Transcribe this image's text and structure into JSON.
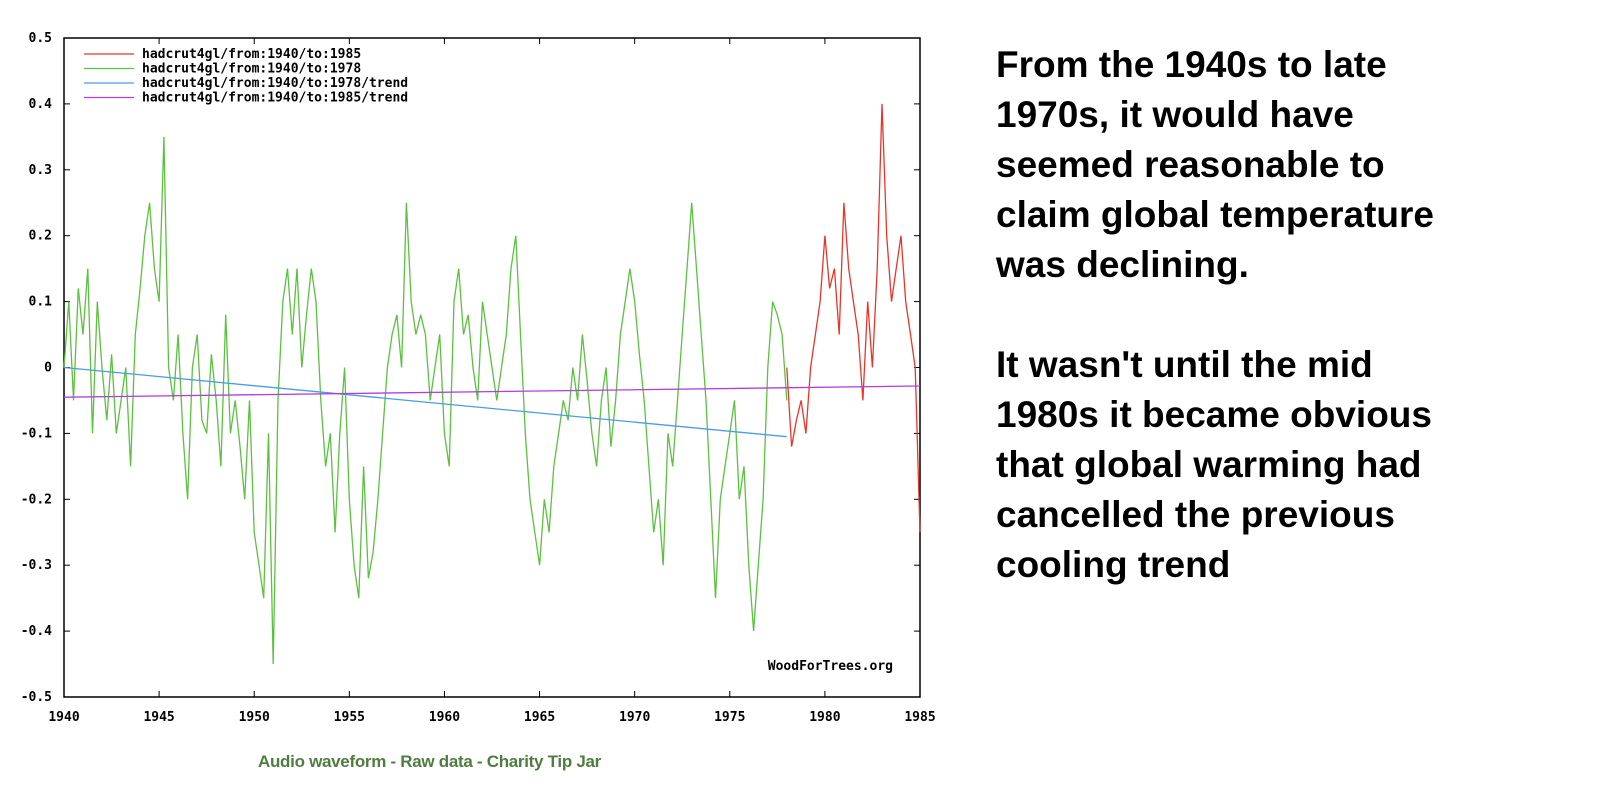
{
  "chart_data": {
    "type": "line",
    "title": "",
    "xlabel": "",
    "ylabel": "",
    "xlim": [
      1940,
      1985
    ],
    "ylim": [
      -0.5,
      0.5
    ],
    "x_ticks": [
      "1940",
      "1945",
      "1950",
      "1955",
      "1960",
      "1965",
      "1970",
      "1975",
      "1980",
      "1985"
    ],
    "y_ticks": [
      "0.5",
      "0.4",
      "0.3",
      "0.2",
      "0.1",
      "0",
      "-0.1",
      "-0.2",
      "-0.3",
      "-0.4",
      "-0.5"
    ],
    "grid": false,
    "legend_position": "top-left",
    "watermark": "WoodForTrees.org",
    "series": [
      {
        "name": "hadcrut4gl/from:1940/to:1985",
        "color": "#e8352b",
        "x_start": 1978.0,
        "x_step": 0.25,
        "values": [
          0.0,
          -0.12,
          -0.08,
          -0.05,
          -0.1,
          0.0,
          0.05,
          0.1,
          0.2,
          0.12,
          0.15,
          0.05,
          0.25,
          0.15,
          0.1,
          0.05,
          -0.05,
          0.1,
          0.0,
          0.15,
          0.4,
          0.2,
          0.1,
          0.15,
          0.2,
          0.1,
          0.05,
          0.0,
          -0.25
        ]
      },
      {
        "name": "hadcrut4gl/from:1940/to:1978",
        "color": "#5cc040",
        "x_start": 1940.0,
        "x_step": 0.25,
        "values": [
          0.0,
          0.1,
          -0.05,
          0.12,
          0.05,
          0.15,
          -0.1,
          0.1,
          0.0,
          -0.08,
          0.02,
          -0.1,
          -0.05,
          0.0,
          -0.15,
          0.05,
          0.12,
          0.2,
          0.25,
          0.15,
          0.1,
          0.35,
          0.0,
          -0.05,
          0.05,
          -0.1,
          -0.2,
          0.0,
          0.05,
          -0.08,
          -0.1,
          0.02,
          -0.05,
          -0.15,
          0.08,
          -0.1,
          -0.05,
          -0.12,
          -0.2,
          -0.05,
          -0.25,
          -0.3,
          -0.35,
          -0.1,
          -0.45,
          -0.05,
          0.1,
          0.15,
          0.05,
          0.15,
          0.0,
          0.08,
          0.15,
          0.1,
          -0.05,
          -0.15,
          -0.1,
          -0.25,
          -0.1,
          0.0,
          -0.2,
          -0.3,
          -0.35,
          -0.15,
          -0.32,
          -0.28,
          -0.2,
          -0.1,
          0.0,
          0.05,
          0.08,
          0.0,
          0.25,
          0.1,
          0.05,
          0.08,
          0.05,
          -0.05,
          0.0,
          0.05,
          -0.1,
          -0.15,
          0.1,
          0.15,
          0.05,
          0.08,
          0.0,
          -0.05,
          0.1,
          0.05,
          0.0,
          -0.05,
          0.0,
          0.05,
          0.15,
          0.2,
          0.05,
          -0.1,
          -0.2,
          -0.25,
          -0.3,
          -0.2,
          -0.25,
          -0.15,
          -0.1,
          -0.05,
          -0.08,
          0.0,
          -0.05,
          0.05,
          -0.02,
          -0.1,
          -0.15,
          -0.05,
          0.0,
          -0.12,
          -0.05,
          0.05,
          0.1,
          0.15,
          0.1,
          0.02,
          -0.05,
          -0.15,
          -0.25,
          -0.2,
          -0.3,
          -0.1,
          -0.15,
          -0.05,
          0.05,
          0.15,
          0.25,
          0.15,
          0.05,
          -0.05,
          -0.2,
          -0.35,
          -0.2,
          -0.15,
          -0.1,
          -0.05,
          -0.2,
          -0.15,
          -0.3,
          -0.4,
          -0.3,
          -0.2,
          0.0,
          0.1,
          0.08,
          0.05,
          -0.05
        ]
      },
      {
        "name": "hadcrut4gl/from:1940/to:1978/trend",
        "color": "#4a9be8",
        "x": [
          1940,
          1978
        ],
        "values": [
          0.0,
          -0.105
        ]
      },
      {
        "name": "hadcrut4gl/from:1940/to:1985/trend",
        "color": "#b03ee0",
        "x": [
          1940,
          1985
        ],
        "values": [
          -0.045,
          -0.028
        ]
      }
    ]
  },
  "annotation": {
    "paragraphs": [
      [
        "From the 1940s to late",
        "1970s, it would have",
        "seemed reasonable to",
        "claim global temperature",
        "was declining."
      ],
      [
        "It wasn't until the mid",
        "1980s it became obvious",
        "that global warming had",
        "cancelled the previous",
        "cooling trend"
      ]
    ]
  },
  "footer": {
    "links": [
      "Audio waveform",
      "Raw data",
      "Charity Tip Jar"
    ],
    "separator": " - "
  }
}
